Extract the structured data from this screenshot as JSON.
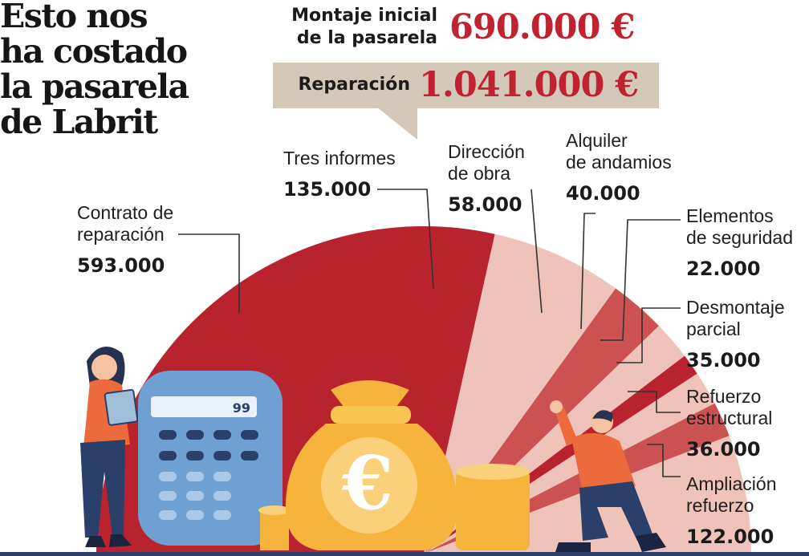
{
  "title": [
    "Esto nos",
    "ha costado",
    "la pasarela",
    "de Labrit"
  ],
  "header": {
    "initial_label": [
      "Montaje inicial",
      "de la pasarela"
    ],
    "initial_value": "690.000 €",
    "repair_label": "Reparación",
    "repair_value": "1.041.000 €"
  },
  "colors": {
    "dark_red": "#b8232e",
    "medium_red": "#cc5252",
    "light_pink": "#efc2ba",
    "value_red": "#c0232f",
    "header_box": "#d4c9b9",
    "figure_blue": "#2b3f6b",
    "figure_orange": "#ec6a3b",
    "bag_yellow": "#f6b43c"
  },
  "icons": [
    "woman-with-clipboard",
    "calculator-icon",
    "euro-money-bag-icon",
    "kneeling-man-pointing"
  ],
  "calculator_display": "99",
  "chart_data": {
    "type": "pie",
    "subtype": "half-donut",
    "total": 1041000,
    "categories": [
      {
        "name": [
          "Contrato de",
          "reparación"
        ],
        "value_label": "593.000",
        "value": 593000,
        "color": "#b8232e"
      },
      {
        "name": [
          "Tres informes"
        ],
        "value_label": "135.000",
        "value": 135000,
        "color": "#efc2ba"
      },
      {
        "name": [
          "Dirección",
          "de obra"
        ],
        "value_label": "58.000",
        "value": 58000,
        "color": "#cc5252"
      },
      {
        "name": [
          "Alquiler",
          "de andamios"
        ],
        "value_label": "40.000",
        "value": 40000,
        "color": "#efc2ba"
      },
      {
        "name": [
          "Elementos",
          "de seguridad"
        ],
        "value_label": "22.000",
        "value": 22000,
        "color": "#b8232e"
      },
      {
        "name": [
          "Desmontaje",
          "parcial"
        ],
        "value_label": "35.000",
        "value": 35000,
        "color": "#efc2ba"
      },
      {
        "name": [
          "Refuerzo",
          "estructural"
        ],
        "value_label": "36.000",
        "value": 36000,
        "color": "#cc5252"
      },
      {
        "name": [
          "Ampliación",
          "refuerzo"
        ],
        "value_label": "122.000",
        "value": 122000,
        "color": "#efc2ba"
      }
    ]
  }
}
